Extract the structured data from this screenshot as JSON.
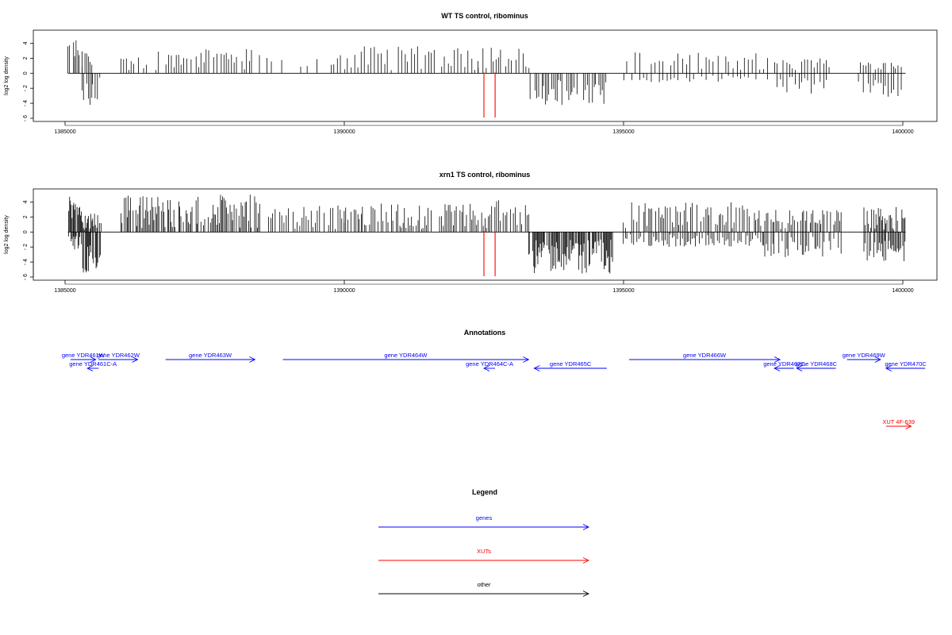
{
  "chart_data": [
    {
      "type": "bar",
      "title": "WT TS control, ribominus",
      "ylabel": "log2 log density",
      "xlim": [
        1385000,
        1400000
      ],
      "ylim": [
        -6,
        5
      ],
      "yticks": [
        -6,
        -4,
        -2,
        0,
        2,
        4
      ],
      "xticks": [
        1385000,
        1390000,
        1395000,
        1400000
      ],
      "markers": [
        1392500,
        1392700
      ],
      "marker_color": "#ff0000",
      "segments": [
        {
          "from": 1385050,
          "to": 1385300,
          "step": 25,
          "pos": [
            1.5,
            4.8
          ],
          "neg": [
            0,
            0
          ]
        },
        {
          "from": 1385300,
          "to": 1385500,
          "step": 30,
          "pos": [
            0.5,
            3.0
          ],
          "neg": [
            -1.0,
            -4.4
          ]
        },
        {
          "from": 1385500,
          "to": 1385650,
          "step": 40,
          "pos": [
            0,
            0
          ],
          "neg": [
            -0.5,
            -4.0
          ]
        },
        {
          "from": 1386000,
          "to": 1388500,
          "step": 45,
          "pos": [
            0.4,
            3.4
          ],
          "neg": [
            0,
            0
          ]
        },
        {
          "from": 1388600,
          "to": 1389500,
          "step": 90,
          "pos": [
            0.4,
            2.5
          ],
          "neg": [
            0,
            0
          ]
        },
        {
          "from": 1389700,
          "to": 1392400,
          "step": 60,
          "pos": [
            0.4,
            3.6
          ],
          "neg": [
            0,
            0
          ]
        },
        {
          "from": 1392400,
          "to": 1393300,
          "step": 45,
          "pos": [
            0.5,
            3.5
          ],
          "neg": [
            0,
            0
          ]
        },
        {
          "from": 1393300,
          "to": 1394700,
          "step": 30,
          "pos": [
            0,
            0
          ],
          "neg": [
            -0.8,
            -4.3
          ]
        },
        {
          "from": 1395000,
          "to": 1397600,
          "step": 70,
          "pos": [
            0.4,
            2.8
          ],
          "neg": [
            -0.3,
            -1.2
          ]
        },
        {
          "from": 1397700,
          "to": 1398700,
          "step": 55,
          "pos": [
            0.3,
            2.0
          ],
          "neg": [
            -0.5,
            -2.8
          ]
        },
        {
          "from": 1399200,
          "to": 1400000,
          "step": 45,
          "pos": [
            0.3,
            1.5
          ],
          "neg": [
            -0.6,
            -3.2
          ]
        }
      ]
    },
    {
      "type": "bar",
      "title": "xrn1 TS control, ribominus",
      "ylabel": "log2 log density",
      "xlim": [
        1385000,
        1400000
      ],
      "ylim": [
        -6,
        5
      ],
      "yticks": [
        -6,
        -4,
        -2,
        0,
        2,
        4
      ],
      "xticks": [
        1385000,
        1390000,
        1395000,
        1400000
      ],
      "markers": [
        1392500,
        1392700
      ],
      "marker_color": "#ff0000",
      "segments": [
        {
          "from": 1385050,
          "to": 1385300,
          "step": 15,
          "pos": [
            1.5,
            4.8
          ],
          "neg": [
            -0.5,
            -2.5
          ]
        },
        {
          "from": 1385300,
          "to": 1385650,
          "step": 15,
          "pos": [
            0.3,
            2.5
          ],
          "neg": [
            -1.5,
            -5.8
          ]
        },
        {
          "from": 1386000,
          "to": 1388500,
          "step": 22,
          "pos": [
            0.5,
            5.0
          ],
          "neg": [
            0,
            0
          ]
        },
        {
          "from": 1388600,
          "to": 1390000,
          "step": 40,
          "pos": [
            0.4,
            3.6
          ],
          "neg": [
            0,
            0
          ]
        },
        {
          "from": 1390000,
          "to": 1392400,
          "step": 30,
          "pos": [
            0.4,
            3.8
          ],
          "neg": [
            0,
            0
          ]
        },
        {
          "from": 1392400,
          "to": 1393300,
          "step": 30,
          "pos": [
            0.5,
            4.3
          ],
          "neg": [
            0,
            0
          ]
        },
        {
          "from": 1393300,
          "to": 1394800,
          "step": 15,
          "pos": [
            0,
            0
          ],
          "neg": [
            -1.0,
            -5.6
          ]
        },
        {
          "from": 1395000,
          "to": 1397500,
          "step": 30,
          "pos": [
            0.5,
            4.0
          ],
          "neg": [
            -0.3,
            -2.0
          ]
        },
        {
          "from": 1397500,
          "to": 1398900,
          "step": 28,
          "pos": [
            0.3,
            3.0
          ],
          "neg": [
            -0.5,
            -3.5
          ]
        },
        {
          "from": 1399300,
          "to": 1400050,
          "step": 20,
          "pos": [
            0.3,
            3.4
          ],
          "neg": [
            -1.0,
            -3.9
          ]
        }
      ]
    }
  ],
  "annotations": {
    "title": "Annotations",
    "genes": [
      {
        "label": "gene YDR461W",
        "start": 1385100,
        "end": 1385550,
        "strand": "+",
        "row": 0
      },
      {
        "label": "gene YDR461C-A",
        "start": 1385400,
        "end": 1385600,
        "strand": "-",
        "row": 1
      },
      {
        "label": "gene YDR462W",
        "start": 1385600,
        "end": 1386300,
        "strand": "+",
        "row": 0
      },
      {
        "label": "gene YDR463W",
        "start": 1386800,
        "end": 1388400,
        "strand": "+",
        "row": 0
      },
      {
        "label": "gene YDR464W",
        "start": 1388900,
        "end": 1393300,
        "strand": "+",
        "row": 0
      },
      {
        "label": "gene YDR464C-A",
        "start": 1392500,
        "end": 1392700,
        "strand": "-",
        "row": 1
      },
      {
        "label": "gene YDR465C",
        "start": 1393400,
        "end": 1394700,
        "strand": "-",
        "row": 1
      },
      {
        "label": "gene YDR466W",
        "start": 1395100,
        "end": 1397800,
        "strand": "+",
        "row": 0
      },
      {
        "label": "gene YDR467C",
        "start": 1397700,
        "end": 1398050,
        "strand": "-",
        "row": 1
      },
      {
        "label": "gene YDR468C",
        "start": 1398100,
        "end": 1398800,
        "strand": "-",
        "row": 1
      },
      {
        "label": "gene YDR469W",
        "start": 1399000,
        "end": 1399600,
        "strand": "+",
        "row": 0
      },
      {
        "label": "gene YDR470C",
        "start": 1399700,
        "end": 1400400,
        "strand": "-",
        "row": 1
      }
    ],
    "xuts": [
      {
        "label": "XUT 4F-639",
        "start": 1399700,
        "end": 1400150,
        "strand": "+"
      }
    ]
  },
  "legend": {
    "title": "Legend",
    "items": [
      {
        "label": "genes",
        "color": "#0000ff"
      },
      {
        "label": "XUTs",
        "color": "#ff0000"
      },
      {
        "label": "other",
        "color": "#000000"
      }
    ]
  },
  "colors": {
    "gene": "#0000ff",
    "xut": "#ff0000",
    "bar": "#000000"
  }
}
